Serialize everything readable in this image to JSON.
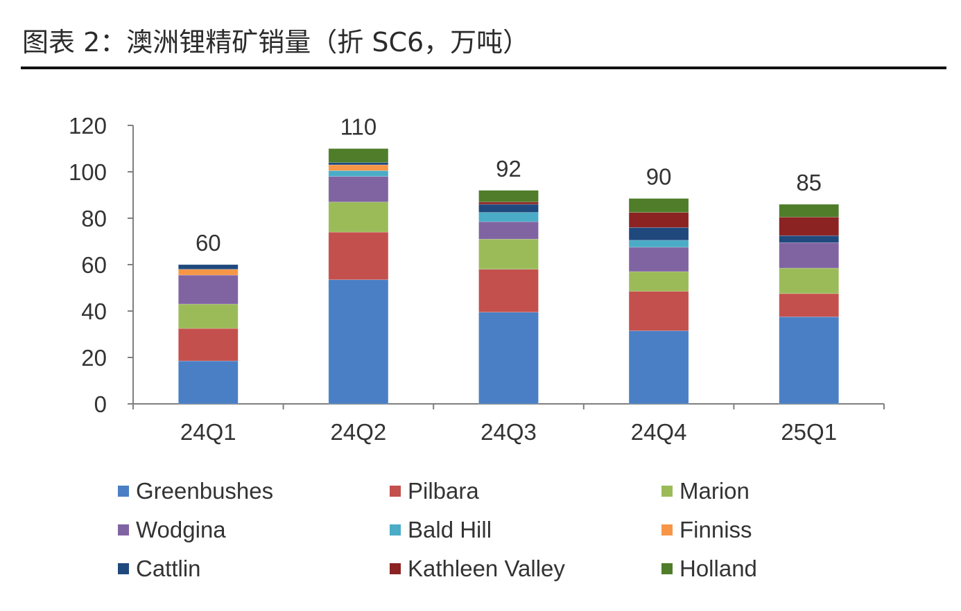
{
  "title": "图表 2：澳洲锂精矿销量（折 SC6，万吨）",
  "chart_data": {
    "type": "bar",
    "stacked": true,
    "categories": [
      "24Q1",
      "24Q2",
      "24Q3",
      "24Q4",
      "25Q1"
    ],
    "ylim": [
      0,
      120
    ],
    "yticks": [
      0,
      20,
      40,
      60,
      80,
      100,
      120
    ],
    "totals": [
      60,
      110,
      92,
      90,
      85
    ],
    "grid": false,
    "legend_position": "bottom",
    "series": [
      {
        "name": "Greenbushes",
        "color": "#4a7fc5",
        "values": [
          18.5,
          53.5,
          39.5,
          31.5,
          37.5
        ]
      },
      {
        "name": "Pilbara",
        "color": "#c4504d",
        "values": [
          14,
          20.5,
          18.5,
          17,
          10
        ]
      },
      {
        "name": "Marion",
        "color": "#9bbb59",
        "values": [
          10.5,
          13,
          13,
          8.5,
          11
        ]
      },
      {
        "name": "Wodgina",
        "color": "#8064a2",
        "values": [
          12.5,
          11,
          7.5,
          10.5,
          11
        ]
      },
      {
        "name": "Bald Hill",
        "color": "#4aacc6",
        "values": [
          0,
          2.5,
          4,
          3,
          0
        ]
      },
      {
        "name": "Finniss",
        "color": "#f79646",
        "values": [
          2.5,
          2.5,
          0,
          0,
          0
        ]
      },
      {
        "name": "Cattlin",
        "color": "#1f497d",
        "values": [
          2,
          1,
          3.5,
          5.5,
          3
        ]
      },
      {
        "name": "Kathleen Valley",
        "color": "#8b2323",
        "values": [
          0,
          0,
          1,
          6.5,
          8
        ]
      },
      {
        "name": "Holland",
        "color": "#4f7d2a",
        "values": [
          0,
          6,
          5,
          6,
          5.5
        ]
      }
    ]
  }
}
